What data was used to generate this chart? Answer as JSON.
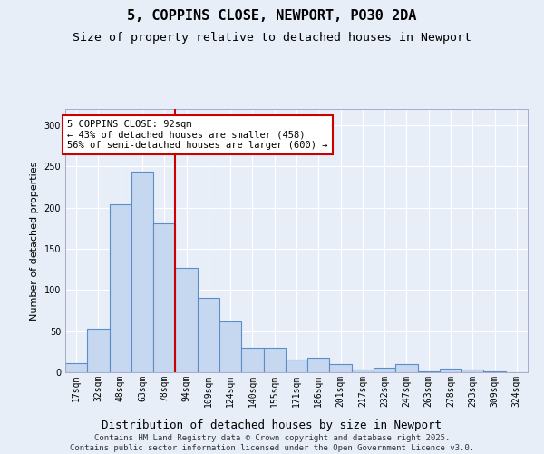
{
  "title": "5, COPPINS CLOSE, NEWPORT, PO30 2DA",
  "subtitle": "Size of property relative to detached houses in Newport",
  "xlabel": "Distribution of detached houses by size in Newport",
  "ylabel": "Number of detached properties",
  "categories": [
    "17sqm",
    "32sqm",
    "48sqm",
    "63sqm",
    "78sqm",
    "94sqm",
    "109sqm",
    "124sqm",
    "140sqm",
    "155sqm",
    "171sqm",
    "186sqm",
    "201sqm",
    "217sqm",
    "232sqm",
    "247sqm",
    "263sqm",
    "278sqm",
    "293sqm",
    "309sqm",
    "324sqm"
  ],
  "values": [
    11,
    53,
    204,
    244,
    181,
    127,
    90,
    62,
    30,
    30,
    15,
    18,
    10,
    3,
    6,
    10,
    1,
    4,
    3,
    1,
    0
  ],
  "bar_color": "#c5d8f0",
  "bar_edge_color": "#5b8dc8",
  "background_color": "#e8eef8",
  "annotation_box_text": "5 COPPINS CLOSE: 92sqm\n← 43% of detached houses are smaller (458)\n56% of semi-detached houses are larger (600) →",
  "annotation_box_color": "white",
  "annotation_box_edge_color": "#cc0000",
  "vline_color": "#cc0000",
  "vline_x": 4.5,
  "ylim": [
    0,
    320
  ],
  "yticks": [
    0,
    50,
    100,
    150,
    200,
    250,
    300
  ],
  "footer_text": "Contains HM Land Registry data © Crown copyright and database right 2025.\nContains public sector information licensed under the Open Government Licence v3.0.",
  "title_fontsize": 11,
  "subtitle_fontsize": 9.5,
  "xlabel_fontsize": 9,
  "ylabel_fontsize": 8,
  "tick_fontsize": 7,
  "annotation_fontsize": 7.5,
  "footer_fontsize": 6.5,
  "grid_color": "#ffffff"
}
